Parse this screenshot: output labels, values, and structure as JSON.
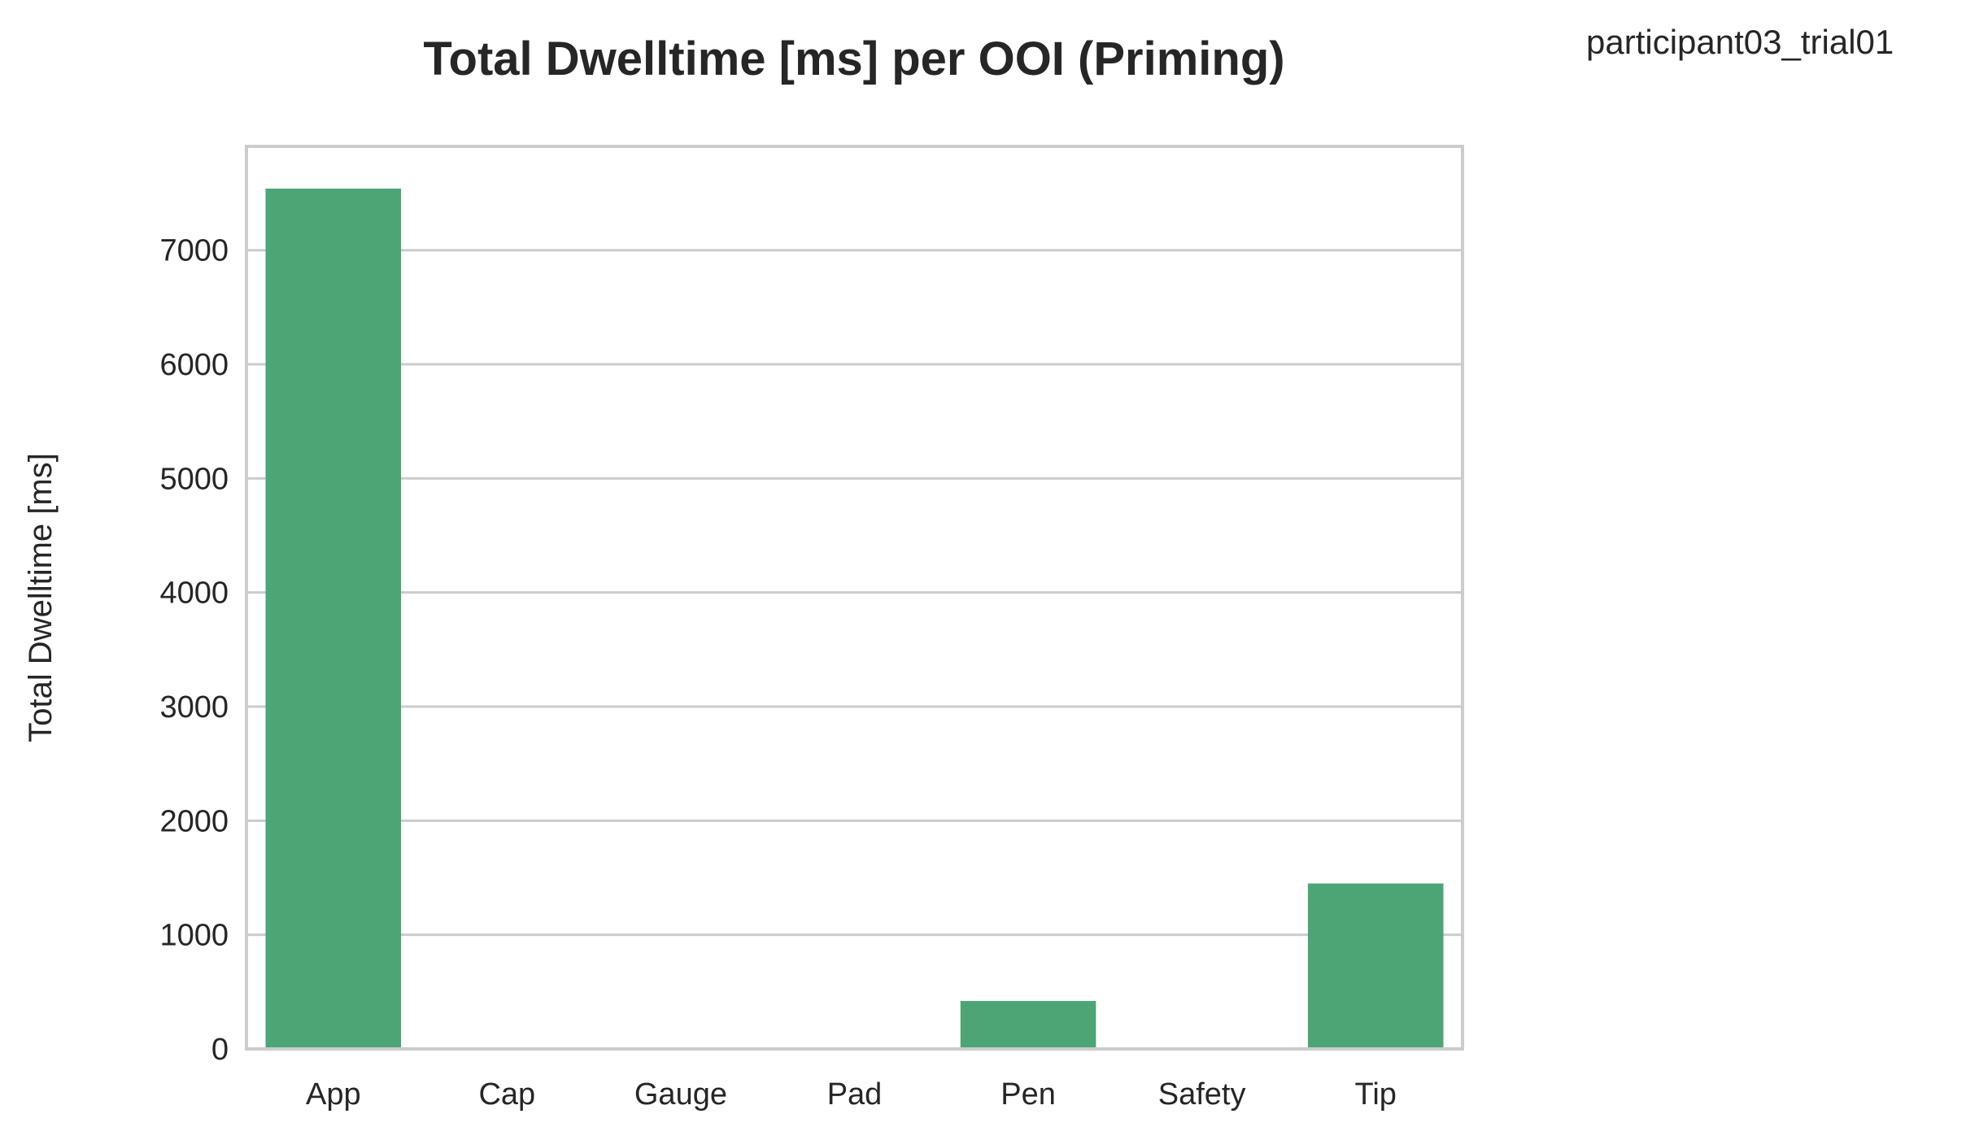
{
  "header": {
    "title": "Total Dwelltime [ms] per OOI (Priming)",
    "annotation": "participant03_trial01"
  },
  "chart_data": {
    "type": "bar",
    "title": "Total Dwelltime [ms] per OOI (Priming)",
    "xlabel": "",
    "ylabel": "Total Dwelltime [ms]",
    "categories": [
      "App",
      "Cap",
      "Gauge",
      "Pad",
      "Pen",
      "Safety",
      "Tip"
    ],
    "values": [
      7540,
      0,
      0,
      0,
      420,
      0,
      1450
    ],
    "ylim": [
      0,
      7910
    ],
    "yticks": [
      0,
      1000,
      2000,
      3000,
      4000,
      5000,
      6000,
      7000
    ],
    "grid": "horizontal",
    "bar_color": "#4ba574",
    "grid_color": "#cccccc",
    "legend": "none"
  }
}
